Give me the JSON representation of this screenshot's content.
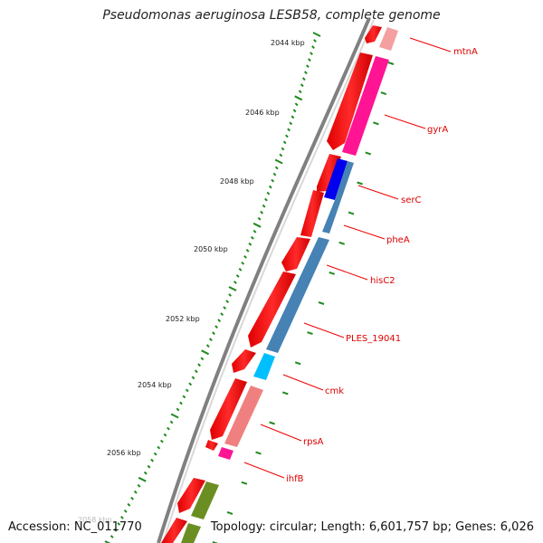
{
  "title": "Pseudomonas aeruginosa LESB58, complete genome",
  "footer": {
    "accession": "Accession: NC_011770",
    "topology": "Topology: circular; Length: 6,601,757 bp; Genes: 6,026"
  },
  "scale_labels": [
    "2044 kbp",
    "2046 kbp",
    "2048 kbp",
    "2050 kbp",
    "2052 kbp",
    "2054 kbp",
    "2056 kbp",
    "2058 kbp"
  ],
  "gene_labels": [
    "mtnA",
    "gyrA",
    "serC",
    "pheA",
    "hisC2",
    "PLES_19041",
    "cmk",
    "rpsA",
    "ihfB"
  ],
  "colors": {
    "backbone": "#808080",
    "cds_forward": "#ff0000",
    "tick": "#1f8a1f",
    "label": "#dd0000",
    "mtnA": "#f4a0a0",
    "gyrA": "#ff1493",
    "serC": "#0000ee",
    "pheA_hisC2": "#4682b4",
    "cmk": "#00bfff",
    "rpsA": "#f08080",
    "ihfB": "#ff1493",
    "unnamed": "#6b8e23"
  }
}
